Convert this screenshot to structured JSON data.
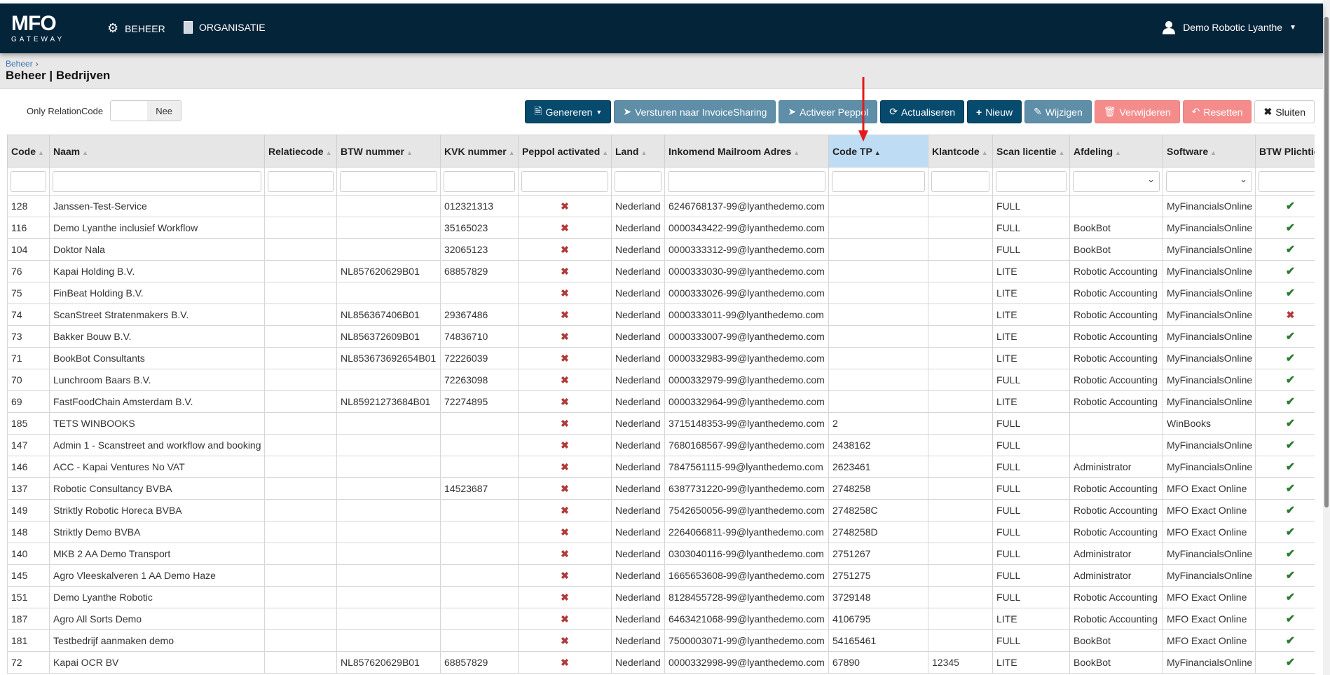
{
  "nav": {
    "logo_main": "MFO",
    "logo_sub": "GATEWAY",
    "items": [
      {
        "label": "BEHEER",
        "icon": "gear-icon"
      },
      {
        "label": "ORGANISATIE",
        "icon": "building-icon"
      }
    ],
    "user": "Demo Robotic Lyanthe"
  },
  "breadcrumb": {
    "parent": "Beheer",
    "sep": "›"
  },
  "page_title": "Beheer | Bedrijven",
  "filter_toggle": {
    "label": "Only RelationCode",
    "value": "Nee"
  },
  "toolbar": {
    "generate": "Genereren",
    "send": "Versturen naar InvoiceSharing",
    "peppol": "Activeer Peppol",
    "refresh": "Actualiseren",
    "new": "Nieuw",
    "edit": "Wijzigen",
    "delete": "Verwijderen",
    "reset": "Resetten",
    "close": "Sluiten"
  },
  "colors": {
    "navbar": "#04243a",
    "primary": "#064a6e",
    "muted": "#5f8ea8",
    "danger": "#f58c8c",
    "sorted_header": "#bfdcf5",
    "check": "#2e7a32",
    "cross": "#b23a3a"
  },
  "table": {
    "columns": [
      "Code",
      "Naam",
      "Relatiecode",
      "BTW nummer",
      "KVK nummer",
      "Peppol activated",
      "Land",
      "Inkomend Mailroom Adres",
      "Code TP",
      "Klantcode",
      "Scan licentie",
      "Afdeling",
      "Software",
      "BTW Plichtig"
    ],
    "sorted_column": "Code TP",
    "sort_direction": "ascending",
    "rows": [
      [
        "128",
        "Janssen-Test-Service",
        "",
        "",
        "012321313",
        false,
        "Nederland",
        "6246768137-99@lyanthedemo.com",
        "",
        "",
        "FULL",
        "",
        "MyFinancialsOnline",
        true
      ],
      [
        "116",
        "Demo Lyanthe inclusief Workflow",
        "",
        "",
        "35165023",
        false,
        "Nederland",
        "0000343422-99@lyanthedemo.com",
        "",
        "",
        "FULL",
        "BookBot",
        "MyFinancialsOnline",
        true
      ],
      [
        "104",
        "Doktor Nala",
        "",
        "",
        "32065123",
        false,
        "Nederland",
        "0000333312-99@lyanthedemo.com",
        "",
        "",
        "FULL",
        "BookBot",
        "MyFinancialsOnline",
        true
      ],
      [
        "76",
        "Kapai Holding B.V.",
        "",
        "NL857620629B01",
        "68857829",
        false,
        "Nederland",
        "0000333030-99@lyanthedemo.com",
        "",
        "",
        "LITE",
        "Robotic Accounting",
        "MyFinancialsOnline",
        true
      ],
      [
        "75",
        "FinBeat Holding B.V.",
        "",
        "",
        "",
        false,
        "Nederland",
        "0000333026-99@lyanthedemo.com",
        "",
        "",
        "LITE",
        "Robotic Accounting",
        "MyFinancialsOnline",
        true
      ],
      [
        "74",
        "ScanStreet Stratenmakers B.V.",
        "",
        "NL856367406B01",
        "29367486",
        false,
        "Nederland",
        "0000333011-99@lyanthedemo.com",
        "",
        "",
        "LITE",
        "Robotic Accounting",
        "MyFinancialsOnline",
        false
      ],
      [
        "73",
        "Bakker Bouw B.V.",
        "",
        "NL856372609B01",
        "74836710",
        false,
        "Nederland",
        "0000333007-99@lyanthedemo.com",
        "",
        "",
        "LITE",
        "Robotic Accounting",
        "MyFinancialsOnline",
        true
      ],
      [
        "71",
        "BookBot Consultants",
        "",
        "NL853673692654B01",
        "72226039",
        false,
        "Nederland",
        "0000332983-99@lyanthedemo.com",
        "",
        "",
        "LITE",
        "Robotic Accounting",
        "MyFinancialsOnline",
        true
      ],
      [
        "70",
        "Lunchroom Baars B.V.",
        "",
        "",
        "72263098",
        false,
        "Nederland",
        "0000332979-99@lyanthedemo.com",
        "",
        "",
        "FULL",
        "Robotic Accounting",
        "MyFinancialsOnline",
        true
      ],
      [
        "69",
        "FastFoodChain Amsterdam B.V.",
        "",
        "NL85921273684B01",
        "72274895",
        false,
        "Nederland",
        "0000332964-99@lyanthedemo.com",
        "",
        "",
        "LITE",
        "Robotic Accounting",
        "MyFinancialsOnline",
        true
      ],
      [
        "185",
        "TETS WINBOOKS",
        "",
        "",
        "",
        false,
        "Nederland",
        "3715148353-99@lyanthedemo.com",
        "2",
        "",
        "FULL",
        "",
        "WinBooks",
        true
      ],
      [
        "147",
        "Admin 1 - Scanstreet and workflow and booking",
        "",
        "",
        "",
        false,
        "Nederland",
        "7680168567-99@lyanthedemo.com",
        "2438162",
        "",
        "FULL",
        "",
        "MyFinancialsOnline",
        true
      ],
      [
        "146",
        "ACC - Kapai Ventures No VAT",
        "",
        "",
        "",
        false,
        "Nederland",
        "7847561115-99@lyanthedemo.com",
        "2623461",
        "",
        "FULL",
        "Administrator",
        "MyFinancialsOnline",
        true
      ],
      [
        "137",
        "Robotic Consultancy BVBA",
        "",
        "",
        "14523687",
        false,
        "Nederland",
        "6387731220-99@lyanthedemo.com",
        "2748258",
        "",
        "FULL",
        "Robotic Accounting",
        "MFO Exact Online",
        true
      ],
      [
        "149",
        "Striktly Robotic Horeca BVBA",
        "",
        "",
        "",
        false,
        "Nederland",
        "7542650056-99@lyanthedemo.com",
        "2748258C",
        "",
        "FULL",
        "Robotic Accounting",
        "MFO Exact Online",
        true
      ],
      [
        "148",
        "Striktly Demo BVBA",
        "",
        "",
        "",
        false,
        "Nederland",
        "2264066811-99@lyanthedemo.com",
        "2748258D",
        "",
        "FULL",
        "Robotic Accounting",
        "MFO Exact Online",
        true
      ],
      [
        "140",
        "MKB 2 AA Demo Transport",
        "",
        "",
        "",
        false,
        "Nederland",
        "0303040116-99@lyanthedemo.com",
        "2751267",
        "",
        "FULL",
        "Administrator",
        "MyFinancialsOnline",
        true
      ],
      [
        "145",
        "Agro Vleeskalveren 1 AA Demo Haze",
        "",
        "",
        "",
        false,
        "Nederland",
        "1665653608-99@lyanthedemo.com",
        "2751275",
        "",
        "FULL",
        "Administrator",
        "MyFinancialsOnline",
        true
      ],
      [
        "151",
        "Demo Lyanthe Robotic",
        "",
        "",
        "",
        false,
        "Nederland",
        "8128455728-99@lyanthedemo.com",
        "3729148",
        "",
        "FULL",
        "Robotic Accounting",
        "MFO Exact Online",
        true
      ],
      [
        "187",
        "Agro All Sorts Demo",
        "",
        "",
        "",
        false,
        "Nederland",
        "6463421068-99@lyanthedemo.com",
        "4106795",
        "",
        "LITE",
        "Robotic Accounting",
        "MFO Exact Online",
        true
      ],
      [
        "181",
        "Testbedrijf aanmaken demo",
        "",
        "",
        "",
        false,
        "Nederland",
        "7500003071-99@lyanthedemo.com",
        "54165461",
        "",
        "FULL",
        "BookBot",
        "MFO Exact Online",
        true
      ],
      [
        "72",
        "Kapai OCR BV",
        "",
        "NL857620629B01",
        "68857829",
        false,
        "Nederland",
        "0000332998-99@lyanthedemo.com",
        "67890",
        "12345",
        "LITE",
        "BookBot",
        "MyFinancialsOnline",
        true
      ]
    ]
  }
}
